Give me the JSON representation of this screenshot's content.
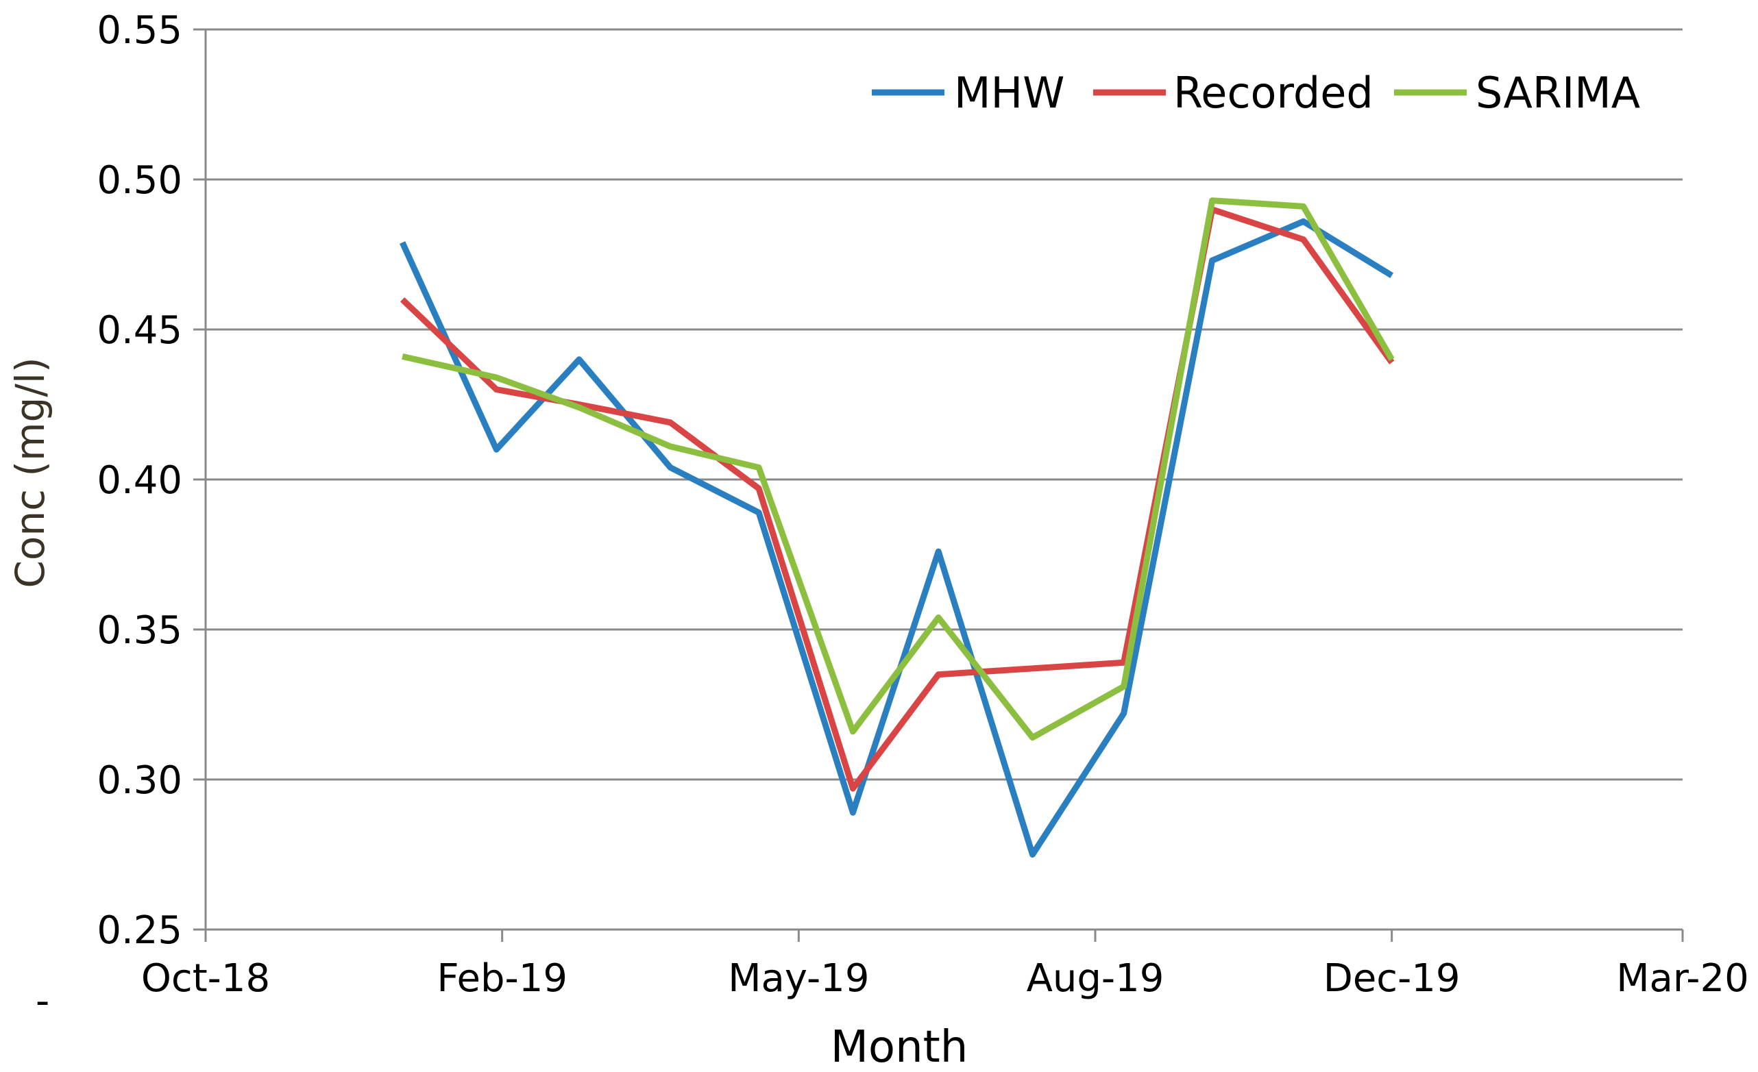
{
  "chart_data": {
    "type": "line",
    "title": "",
    "xlabel": "Month",
    "ylabel": "Conc (mg/l)",
    "ylim": [
      0.25,
      0.55
    ],
    "yticks": [
      0.25,
      0.3,
      0.35,
      0.4,
      0.45,
      0.5,
      0.55
    ],
    "ytick_labels": [
      "0.25",
      "0.30",
      "0.35",
      "0.40",
      "0.45",
      "0.50",
      "0.55"
    ],
    "xlim_days": [
      0,
      518
    ],
    "xticks_days": [
      0,
      104,
      208,
      312,
      416,
      518
    ],
    "xtick_labels": [
      "Oct-18",
      "Feb-19",
      "May-19",
      "Aug-19",
      "Dec-19",
      "Mar-20"
    ],
    "x_days": [
      69,
      102,
      131,
      163,
      194,
      227,
      257,
      290,
      322,
      353,
      385,
      416
    ],
    "series": [
      {
        "name": "MHW",
        "color": "#2a7fc1",
        "values": [
          0.479,
          0.41,
          0.44,
          0.404,
          0.389,
          0.289,
          0.376,
          0.275,
          0.322,
          0.473,
          0.486,
          0.468
        ]
      },
      {
        "name": "Recorded",
        "color": "#d94545",
        "values": [
          0.46,
          0.43,
          0.425,
          0.419,
          0.397,
          0.297,
          0.335,
          0.337,
          0.339,
          0.49,
          0.48,
          0.439
        ]
      },
      {
        "name": "SARIMA",
        "color": "#8cbf3f",
        "values": [
          0.441,
          0.434,
          0.424,
          0.411,
          0.404,
          0.316,
          0.354,
          0.314,
          0.331,
          0.493,
          0.491,
          0.44
        ]
      }
    ],
    "grid": true,
    "legend_position": "top-right"
  }
}
